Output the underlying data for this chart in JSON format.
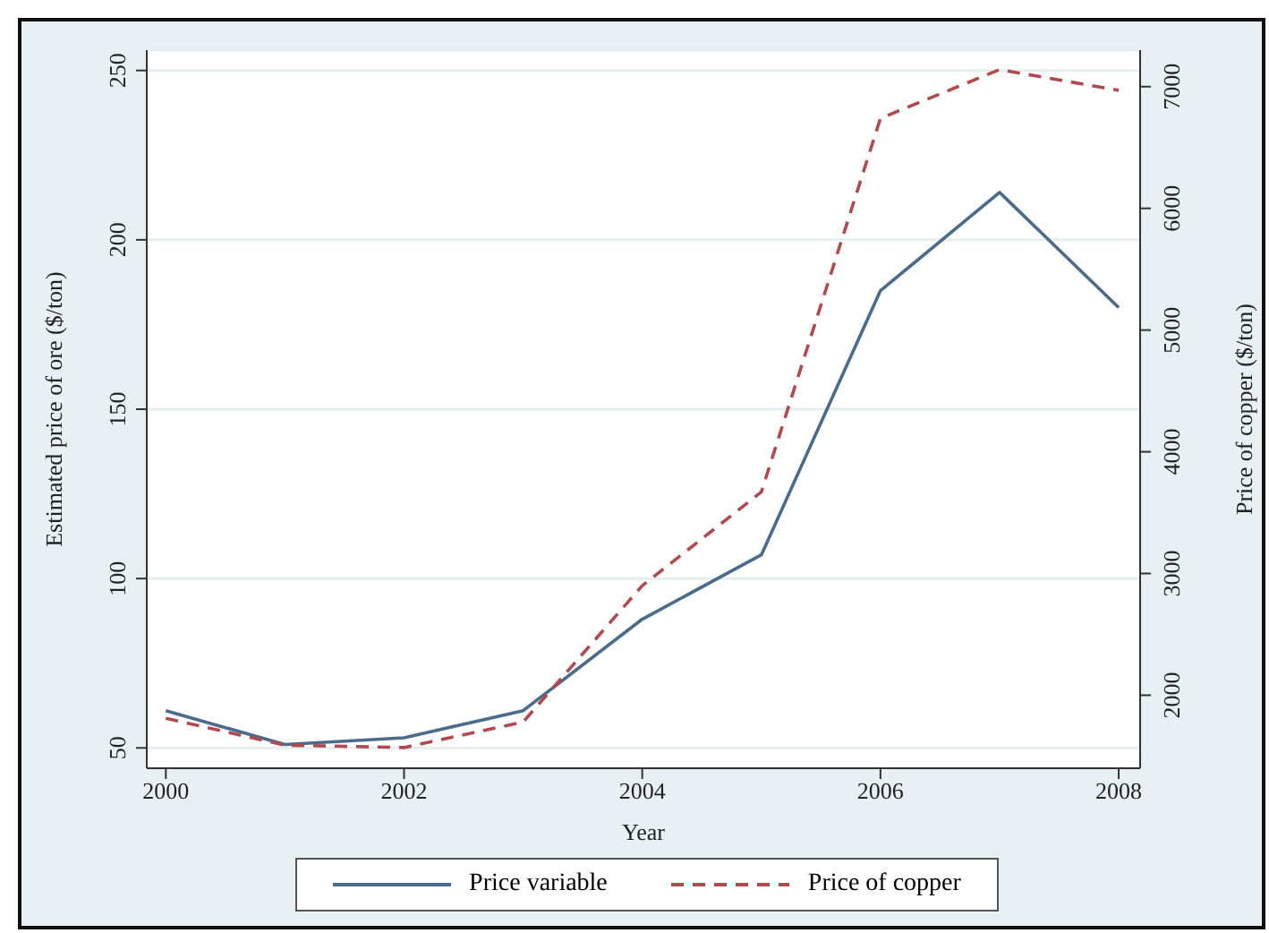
{
  "chart_data": {
    "type": "line",
    "xlabel": "Year",
    "ylabel": "Estimated price of ore ($/ton)",
    "y2label": "Price of copper ($/ton)",
    "x": [
      2000,
      2001,
      2002,
      2003,
      2004,
      2005,
      2006,
      2007,
      2008
    ],
    "series": [
      {
        "name": "Price variable",
        "color": "#4a6b8a",
        "line_style": "solid",
        "values": [
          61,
          51,
          53,
          61,
          88,
          107,
          185,
          214,
          180
        ]
      },
      {
        "name": "Price of copper",
        "color": "#b04a50",
        "line_style": "dashed",
        "axis": "y2",
        "values": [
          1810,
          1590,
          1570,
          1780,
          2900,
          3670,
          6740,
          7140,
          6970
        ]
      }
    ],
    "xlim": [
      1999.84,
      2008.18
    ],
    "xticks": [
      2000,
      2002,
      2004,
      2006,
      2008
    ],
    "ylim": [
      44,
      256
    ],
    "yticks": [
      50,
      100,
      150,
      200,
      250
    ],
    "y2lim": [
      1400,
      7300
    ],
    "y2ticks": [
      2000,
      3000,
      4000,
      5000,
      6000,
      7000
    ],
    "grid": "y",
    "legend": "bottom",
    "marker": "none"
  }
}
